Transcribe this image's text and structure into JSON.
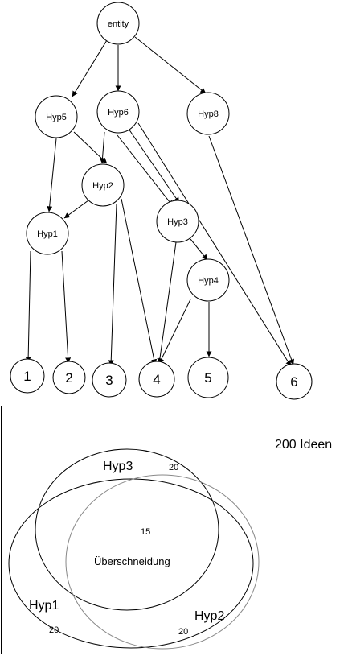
{
  "graph": {
    "nodes": {
      "entity": "entity",
      "hyp5": "Hyp5",
      "hyp6": "Hyp6",
      "hyp8": "Hyp8",
      "hyp2": "Hyp2",
      "hyp1": "Hyp1",
      "hyp3": "Hyp3",
      "hyp4": "Hyp4",
      "leaf1": "1",
      "leaf2": "2",
      "leaf3": "3",
      "leaf4": "4",
      "leaf5": "5",
      "leaf6": "6"
    },
    "edges": [
      [
        "entity",
        "hyp5"
      ],
      [
        "entity",
        "hyp6"
      ],
      [
        "entity",
        "hyp8"
      ],
      [
        "hyp5",
        "hyp1"
      ],
      [
        "hyp5",
        "hyp2"
      ],
      [
        "hyp6",
        "hyp2"
      ],
      [
        "hyp6",
        "hyp3"
      ],
      [
        "hyp6",
        "hyp3"
      ],
      [
        "hyp6",
        "leaf6"
      ],
      [
        "hyp2",
        "hyp1"
      ],
      [
        "hyp2",
        "leaf3"
      ],
      [
        "hyp2",
        "leaf4"
      ],
      [
        "hyp1",
        "leaf1"
      ],
      [
        "hyp1",
        "leaf2"
      ],
      [
        "hyp3",
        "hyp4"
      ],
      [
        "hyp3",
        "leaf4"
      ],
      [
        "hyp4",
        "leaf4"
      ],
      [
        "hyp4",
        "leaf5"
      ],
      [
        "hyp8",
        "leaf6"
      ]
    ]
  },
  "venn": {
    "total_label": "200 Ideen",
    "sets": [
      {
        "name": "Hyp3",
        "count": "20"
      },
      {
        "name": "Hyp1",
        "count": "20"
      },
      {
        "name": "Hyp2",
        "count": "20"
      }
    ],
    "intersection_label": "Überschneidung",
    "intersection_count": "15"
  }
}
